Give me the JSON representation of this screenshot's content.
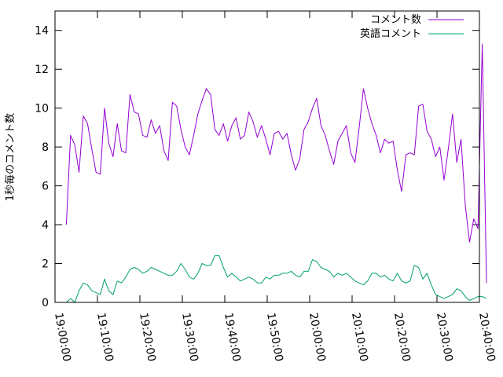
{
  "chart_data": {
    "type": "line",
    "ylabel": "1秒毎のコメント数",
    "xlim": [
      "19:00:00",
      "20:40:00"
    ],
    "ylim": [
      0,
      15
    ],
    "x_ticks": [
      "19:00:00",
      "19:10:00",
      "19:20:00",
      "19:30:00",
      "19:40:00",
      "19:50:00",
      "20:00:00",
      "20:10:00",
      "20:20:00",
      "20:30:00",
      "20:40:00"
    ],
    "y_ticks": [
      "0",
      "2",
      "4",
      "6",
      "8",
      "10",
      "12",
      "14"
    ],
    "grid": false,
    "legend_position": "top-right",
    "series": [
      {
        "name": "コメント数",
        "color": "#9400d3",
        "points": [
          [
            "19:02:40",
            4.0
          ],
          [
            "19:03:40",
            8.6
          ],
          [
            "19:04:40",
            8.1
          ],
          [
            "19:05:40",
            6.7
          ],
          [
            "19:06:40",
            9.6
          ],
          [
            "19:07:40",
            9.2
          ],
          [
            "19:08:40",
            7.9
          ],
          [
            "19:09:40",
            6.7
          ],
          [
            "19:10:40",
            6.6
          ],
          [
            "19:11:40",
            10.0
          ],
          [
            "19:12:40",
            8.2
          ],
          [
            "19:13:40",
            7.5
          ],
          [
            "19:14:40",
            9.2
          ],
          [
            "19:15:40",
            7.8
          ],
          [
            "19:16:40",
            7.7
          ],
          [
            "19:17:40",
            10.7
          ],
          [
            "19:18:40",
            9.8
          ],
          [
            "19:19:40",
            9.7
          ],
          [
            "19:20:40",
            8.6
          ],
          [
            "19:21:40",
            8.5
          ],
          [
            "19:22:40",
            9.4
          ],
          [
            "19:23:40",
            8.7
          ],
          [
            "19:24:40",
            9.1
          ],
          [
            "19:25:40",
            7.8
          ],
          [
            "19:26:40",
            7.3
          ],
          [
            "19:27:40",
            10.3
          ],
          [
            "19:28:40",
            10.1
          ],
          [
            "19:29:40",
            8.9
          ],
          [
            "19:30:40",
            8.0
          ],
          [
            "19:31:40",
            7.6
          ],
          [
            "19:32:40",
            8.6
          ],
          [
            "19:33:40",
            9.7
          ],
          [
            "19:34:40",
            10.4
          ],
          [
            "19:35:40",
            11.0
          ],
          [
            "19:36:40",
            10.7
          ],
          [
            "19:37:40",
            8.9
          ],
          [
            "19:38:40",
            8.6
          ],
          [
            "19:39:40",
            9.2
          ],
          [
            "19:40:40",
            8.3
          ],
          [
            "19:41:40",
            9.1
          ],
          [
            "19:42:40",
            9.5
          ],
          [
            "19:43:40",
            8.4
          ],
          [
            "19:44:40",
            8.6
          ],
          [
            "19:45:40",
            9.8
          ],
          [
            "19:46:40",
            9.3
          ],
          [
            "19:47:40",
            8.5
          ],
          [
            "19:48:40",
            9.1
          ],
          [
            "19:49:40",
            8.4
          ],
          [
            "19:50:40",
            7.6
          ],
          [
            "19:51:40",
            8.7
          ],
          [
            "19:52:40",
            8.8
          ],
          [
            "19:53:40",
            8.4
          ],
          [
            "19:54:40",
            8.7
          ],
          [
            "19:55:40",
            7.6
          ],
          [
            "19:56:40",
            6.8
          ],
          [
            "19:57:40",
            7.4
          ],
          [
            "19:58:40",
            8.9
          ],
          [
            "19:59:40",
            9.3
          ],
          [
            "20:00:40",
            10.0
          ],
          [
            "20:01:40",
            10.5
          ],
          [
            "20:02:40",
            9.1
          ],
          [
            "20:03:40",
            8.6
          ],
          [
            "20:04:40",
            7.8
          ],
          [
            "20:05:40",
            7.1
          ],
          [
            "20:06:40",
            8.3
          ],
          [
            "20:07:40",
            8.7
          ],
          [
            "20:08:40",
            9.1
          ],
          [
            "20:09:40",
            7.7
          ],
          [
            "20:10:40",
            7.2
          ],
          [
            "20:11:40",
            9.0
          ],
          [
            "20:12:40",
            11.0
          ],
          [
            "20:13:40",
            10.0
          ],
          [
            "20:14:40",
            9.2
          ],
          [
            "20:15:40",
            8.6
          ],
          [
            "20:16:40",
            7.7
          ],
          [
            "20:17:40",
            8.4
          ],
          [
            "20:18:40",
            8.2
          ],
          [
            "20:19:40",
            8.3
          ],
          [
            "20:20:40",
            6.8
          ],
          [
            "20:21:40",
            5.7
          ],
          [
            "20:22:40",
            7.6
          ],
          [
            "20:23:40",
            7.7
          ],
          [
            "20:24:40",
            7.6
          ],
          [
            "20:25:40",
            10.1
          ],
          [
            "20:26:40",
            10.2
          ],
          [
            "20:27:40",
            8.8
          ],
          [
            "20:28:40",
            8.4
          ],
          [
            "20:29:40",
            7.5
          ],
          [
            "20:30:40",
            8.0
          ],
          [
            "20:31:40",
            6.3
          ],
          [
            "20:32:40",
            7.9
          ],
          [
            "20:33:40",
            9.7
          ],
          [
            "20:34:40",
            7.2
          ],
          [
            "20:35:40",
            8.4
          ],
          [
            "20:36:40",
            5.0
          ],
          [
            "20:37:40",
            3.1
          ],
          [
            "20:38:40",
            4.3
          ],
          [
            "20:39:40",
            3.8
          ],
          [
            "20:40:40",
            13.3
          ],
          [
            "20:41:40",
            1.0
          ]
        ]
      },
      {
        "name": "英語コメント",
        "color": "#009e73",
        "points": [
          [
            "19:02:40",
            0.0
          ],
          [
            "19:03:40",
            0.2
          ],
          [
            "19:04:40",
            0.0
          ],
          [
            "19:05:40",
            0.6
          ],
          [
            "19:06:40",
            1.0
          ],
          [
            "19:07:40",
            0.9
          ],
          [
            "19:08:40",
            0.6
          ],
          [
            "19:09:40",
            0.5
          ],
          [
            "19:10:40",
            0.4
          ],
          [
            "19:11:40",
            1.2
          ],
          [
            "19:12:40",
            0.6
          ],
          [
            "19:13:40",
            0.4
          ],
          [
            "19:14:40",
            1.1
          ],
          [
            "19:15:40",
            1.0
          ],
          [
            "19:16:40",
            1.3
          ],
          [
            "19:17:40",
            1.7
          ],
          [
            "19:18:40",
            1.8
          ],
          [
            "19:19:40",
            1.7
          ],
          [
            "19:20:40",
            1.5
          ],
          [
            "19:21:40",
            1.6
          ],
          [
            "19:22:40",
            1.8
          ],
          [
            "19:23:40",
            1.7
          ],
          [
            "19:24:40",
            1.6
          ],
          [
            "19:25:40",
            1.5
          ],
          [
            "19:26:40",
            1.4
          ],
          [
            "19:27:40",
            1.4
          ],
          [
            "19:28:40",
            1.6
          ],
          [
            "19:29:40",
            2.0
          ],
          [
            "19:30:40",
            1.7
          ],
          [
            "19:31:40",
            1.3
          ],
          [
            "19:32:40",
            1.2
          ],
          [
            "19:33:40",
            1.5
          ],
          [
            "19:34:40",
            2.0
          ],
          [
            "19:35:40",
            1.9
          ],
          [
            "19:36:40",
            1.9
          ],
          [
            "19:37:40",
            2.4
          ],
          [
            "19:38:40",
            2.4
          ],
          [
            "19:39:40",
            1.8
          ],
          [
            "19:40:40",
            1.3
          ],
          [
            "19:41:40",
            1.5
          ],
          [
            "19:42:40",
            1.3
          ],
          [
            "19:43:40",
            1.1
          ],
          [
            "19:44:40",
            1.2
          ],
          [
            "19:45:40",
            1.3
          ],
          [
            "19:46:40",
            1.2
          ],
          [
            "19:47:40",
            1.0
          ],
          [
            "19:48:40",
            1.0
          ],
          [
            "19:49:40",
            1.3
          ],
          [
            "19:50:40",
            1.2
          ],
          [
            "19:51:40",
            1.4
          ],
          [
            "19:52:40",
            1.4
          ],
          [
            "19:53:40",
            1.5
          ],
          [
            "19:54:40",
            1.5
          ],
          [
            "19:55:40",
            1.6
          ],
          [
            "19:56:40",
            1.4
          ],
          [
            "19:57:40",
            1.3
          ],
          [
            "19:58:40",
            1.6
          ],
          [
            "19:59:40",
            1.6
          ],
          [
            "20:00:40",
            2.2
          ],
          [
            "20:01:40",
            2.1
          ],
          [
            "20:02:40",
            1.8
          ],
          [
            "20:03:40",
            1.7
          ],
          [
            "20:04:40",
            1.6
          ],
          [
            "20:05:40",
            1.3
          ],
          [
            "20:06:40",
            1.5
          ],
          [
            "20:07:40",
            1.4
          ],
          [
            "20:08:40",
            1.5
          ],
          [
            "20:09:40",
            1.3
          ],
          [
            "20:10:40",
            1.1
          ],
          [
            "20:11:40",
            1.0
          ],
          [
            "20:12:40",
            0.9
          ],
          [
            "20:13:40",
            1.1
          ],
          [
            "20:14:40",
            1.5
          ],
          [
            "20:15:40",
            1.5
          ],
          [
            "20:16:40",
            1.3
          ],
          [
            "20:17:40",
            1.4
          ],
          [
            "20:18:40",
            1.2
          ],
          [
            "20:19:40",
            1.1
          ],
          [
            "20:20:40",
            1.5
          ],
          [
            "20:21:40",
            1.1
          ],
          [
            "20:22:40",
            1.0
          ],
          [
            "20:23:40",
            1.1
          ],
          [
            "20:24:40",
            1.9
          ],
          [
            "20:25:40",
            1.8
          ],
          [
            "20:26:40",
            1.2
          ],
          [
            "20:27:40",
            1.5
          ],
          [
            "20:28:40",
            0.9
          ],
          [
            "20:29:40",
            0.4
          ],
          [
            "20:30:40",
            0.3
          ],
          [
            "20:31:40",
            0.2
          ],
          [
            "20:32:40",
            0.3
          ],
          [
            "20:33:40",
            0.4
          ],
          [
            "20:34:40",
            0.7
          ],
          [
            "20:35:40",
            0.6
          ],
          [
            "20:36:40",
            0.3
          ],
          [
            "20:37:40",
            0.1
          ],
          [
            "20:38:40",
            0.2
          ],
          [
            "20:39:40",
            0.3
          ],
          [
            "20:40:40",
            0.3
          ],
          [
            "20:41:40",
            0.2
          ]
        ]
      }
    ]
  }
}
